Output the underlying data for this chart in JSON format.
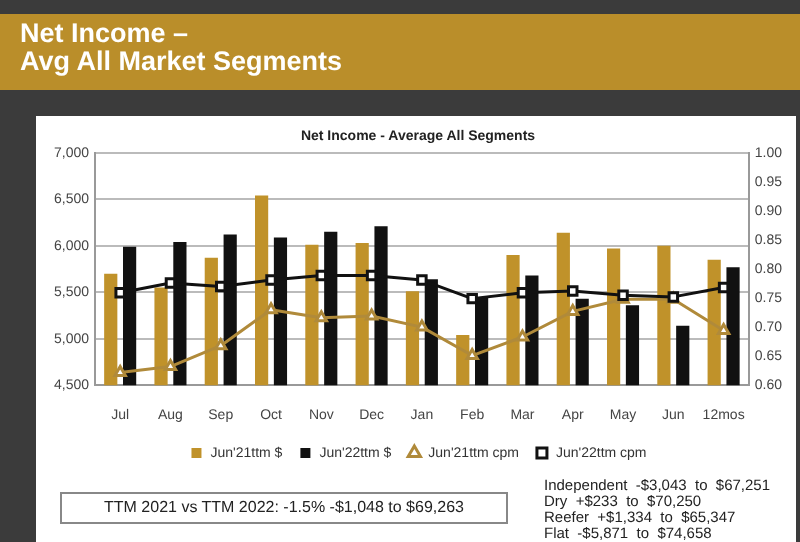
{
  "chart_data": {
    "type": "bar",
    "title": "Net Income –\nAvg All Market Segments",
    "subtitle": "Net Income - Average All Segments",
    "categories": [
      "Jul",
      "Aug",
      "Sep",
      "Oct",
      "Nov",
      "Dec",
      "Jan",
      "Feb",
      "Mar",
      "Apr",
      "May",
      "Jun",
      "12mos"
    ],
    "series": [
      {
        "name": "Jun'21ttm $",
        "color": "#c0922a",
        "values": [
          5700,
          5550,
          5870,
          6540,
          6010,
          6030,
          5510,
          5040,
          5900,
          6140,
          5970,
          6000,
          5850
        ]
      },
      {
        "name": "Jun'22ttm $",
        "color": "#111111",
        "values": [
          5990,
          6040,
          6120,
          6090,
          6150,
          6210,
          5640,
          5450,
          5680,
          5430,
          5360,
          5140,
          5770
        ]
      },
      {
        "name": "Jun'21ttm cpm",
        "type": "line",
        "axis": "y2",
        "marker": "triangle",
        "color": "#b08a3a",
        "values": [
          0.622,
          0.632,
          0.668,
          0.73,
          0.716,
          0.719,
          0.7,
          0.651,
          0.683,
          0.727,
          0.748,
          0.748,
          0.694
        ]
      },
      {
        "name": "Jun'22ttm cpm",
        "type": "line",
        "axis": "y2",
        "marker": "square",
        "color": "#111111",
        "values": [
          0.759,
          0.776,
          0.77,
          0.781,
          0.789,
          0.789,
          0.781,
          0.749,
          0.759,
          0.762,
          0.755,
          0.752,
          0.768
        ]
      }
    ],
    "ylim": [
      4500,
      7000
    ],
    "yticks": [
      {
        "value": 4500,
        "label": "4,500"
      },
      {
        "value": 5000,
        "label": "5,000"
      },
      {
        "value": 5500,
        "label": "5,500"
      },
      {
        "value": 6000,
        "label": "6,000"
      },
      {
        "value": 6500,
        "label": "6,500"
      },
      {
        "value": 7000,
        "label": "7,000"
      }
    ],
    "y2lim": [
      0.6,
      1.0
    ],
    "y2ticks": [
      {
        "value": 0.6,
        "label": "0.60"
      },
      {
        "value": 0.65,
        "label": "0.65"
      },
      {
        "value": 0.7,
        "label": "0.70"
      },
      {
        "value": 0.75,
        "label": "0.75"
      },
      {
        "value": 0.8,
        "label": "0.80"
      },
      {
        "value": 0.85,
        "label": "0.85"
      },
      {
        "value": 0.9,
        "label": "0.90"
      },
      {
        "value": 0.95,
        "label": "0.95"
      },
      {
        "value": 1.0,
        "label": "1.00"
      }
    ],
    "grid": "y",
    "legend": "bottom",
    "annotations": [
      "TTM 2021 vs TTM 2022:  -1.5%  -$1,048 to $69,263",
      "Independent  -$3,043  to  $67,251",
      "Dry  +$233  to  $70,250",
      "Reefer  +$1,334  to  $65,347",
      "Flat  -$5,871  to  $74,658"
    ]
  }
}
